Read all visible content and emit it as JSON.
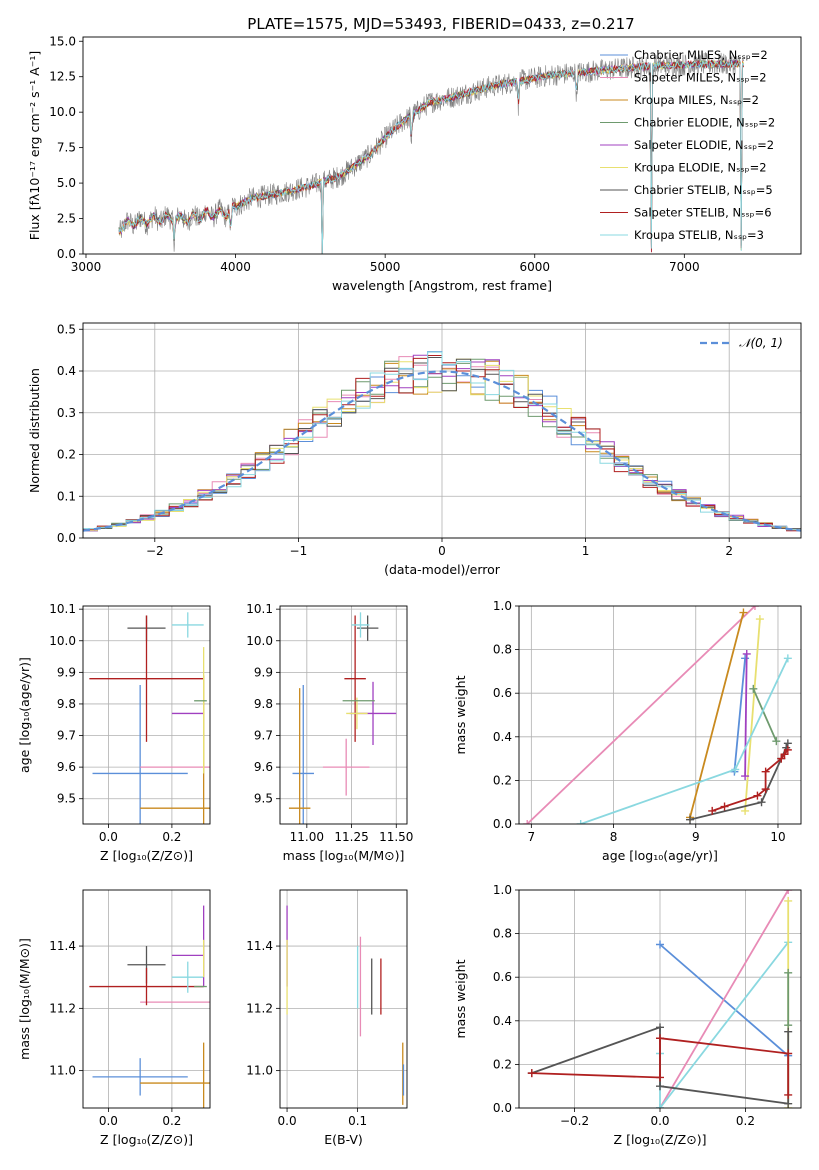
{
  "figure_title": "PLATE=1575, MJD=53493, FIBERID=0433, z=0.217",
  "colors": {
    "chabrier_miles": "#5b8fd9",
    "salpeter_miles": "#e88bb6",
    "kroupa_miles": "#c98a1f",
    "chabrier_elodie": "#6e9a6e",
    "salpeter_elodie": "#a040c0",
    "kroupa_elodie": "#e8e070",
    "chabrier_stelib": "#555555",
    "salpeter_stelib": "#b02020",
    "kroupa_stelib": "#8ad8e0",
    "data": "#808080",
    "gauss": "#5b8fd9",
    "grid": "#b0b0b0"
  },
  "chart_data": [
    {
      "id": "spectrum",
      "type": "line",
      "xlabel": "wavelength [Angstrom, rest frame]",
      "ylabel": "Flux [fλ10⁻¹⁷ erg cm⁻² s⁻¹ A⁻¹]",
      "xlim": [
        2980,
        7780
      ],
      "ylim": [
        0,
        15.3
      ],
      "xticks": [
        3000,
        4000,
        5000,
        6000,
        7000
      ],
      "yticks": [
        0.0,
        2.5,
        5.0,
        7.5,
        10.0,
        12.5,
        15.0
      ],
      "ytick_labels": [
        "0.0",
        "2.5",
        "5.0",
        "7.5",
        "10.0",
        "12.5",
        "15.0"
      ],
      "grid": false,
      "legend_position": "top-right",
      "continuum": [
        [
          3220,
          1.8
        ],
        [
          3300,
          2.2
        ],
        [
          3500,
          2.5
        ],
        [
          3700,
          2.5
        ],
        [
          3800,
          2.8
        ],
        [
          3950,
          2.9
        ],
        [
          4000,
          3.3
        ],
        [
          4100,
          3.9
        ],
        [
          4300,
          4.3
        ],
        [
          4500,
          4.8
        ],
        [
          4700,
          5.5
        ],
        [
          4900,
          7.0
        ],
        [
          5000,
          8.2
        ],
        [
          5100,
          9.2
        ],
        [
          5300,
          10.7
        ],
        [
          5500,
          11.2
        ],
        [
          5700,
          11.8
        ],
        [
          5900,
          12.2
        ],
        [
          6100,
          12.6
        ],
        [
          6300,
          12.8
        ],
        [
          6500,
          13.0
        ],
        [
          6700,
          13.2
        ],
        [
          6900,
          13.3
        ],
        [
          7100,
          13.4
        ],
        [
          7300,
          13.4
        ],
        [
          7400,
          13.4
        ]
      ],
      "features": [
        [
          3590,
          -1.5
        ],
        [
          3968,
          -2.0
        ],
        [
          4580,
          -6.0
        ],
        [
          5175,
          -2.0
        ],
        [
          5890,
          -2.0
        ],
        [
          6280,
          -2.0
        ],
        [
          6780,
          -13.0
        ],
        [
          7380,
          -13.0
        ]
      ],
      "legend": [
        "Chabrier MILES, Nₛₛₚ=2",
        "Salpeter MILES, Nₛₛₚ=2",
        "Kroupa MILES, Nₛₛₚ=2",
        "Chabrier ELODIE, Nₛₛₚ=2",
        "Salpeter ELODIE, Nₛₛₚ=2",
        "Kroupa ELODIE, Nₛₛₚ=2",
        "Chabrier STELIB, Nₛₛₚ=5",
        "Salpeter STELIB, Nₛₛₚ=6",
        "Kroupa STELIB, Nₛₛₚ=3"
      ]
    },
    {
      "id": "residuals",
      "type": "line",
      "xlabel": "(data-model)/error",
      "ylabel": "Normed distribution",
      "xlim": [
        -2.5,
        2.5
      ],
      "ylim": [
        0,
        0.515
      ],
      "xticks": [
        -2,
        -1,
        0,
        1,
        2
      ],
      "xtick_labels": [
        "−2",
        "−1",
        "0",
        "1",
        "2"
      ],
      "yticks": [
        0.0,
        0.1,
        0.2,
        0.3,
        0.4,
        0.5
      ],
      "ytick_labels": [
        "0.0",
        "0.1",
        "0.2",
        "0.3",
        "0.4",
        "0.5"
      ],
      "grid": true,
      "legend_position": "top-right",
      "legend": [
        "𝒩(0, 1)"
      ],
      "bin_width": 0.1
    },
    {
      "id": "age_vs_Z",
      "type": "scatter",
      "xlabel": "Z [log₁₀(Z/Z⊙)]",
      "ylabel": "age  [log₁₀(age/yr)]",
      "xlim": [
        -0.08,
        0.32
      ],
      "ylim": [
        9.42,
        10.11
      ],
      "xticks": [
        0.0,
        0.2
      ],
      "xtick_labels": [
        "0.0",
        "0.2"
      ],
      "yticks": [
        9.5,
        9.6,
        9.7,
        9.8,
        9.9,
        10.0,
        10.1
      ],
      "ytick_labels": [
        "9.5",
        "9.6",
        "9.7",
        "9.8",
        "9.9",
        "10.0",
        "10.1"
      ],
      "grid": true,
      "points": [
        {
          "s": "chabrier_miles",
          "x": 0.1,
          "y": 9.58,
          "xe": 0.15,
          "ye": 0.28
        },
        {
          "s": "kroupa_miles",
          "x": 0.3,
          "y": 9.47,
          "xe": 0.2,
          "ye": 0.42
        },
        {
          "s": "salpeter_miles",
          "x": 0.3,
          "y": 9.6,
          "xe": 0.2,
          "ye": 0.0
        },
        {
          "s": "chabrier_stelib",
          "x": 0.12,
          "y": 10.04,
          "xe": 0.06,
          "ye": 0.04
        },
        {
          "s": "salpeter_stelib",
          "x": 0.12,
          "y": 9.88,
          "xe": 0.18,
          "ye": 0.2
        },
        {
          "s": "kroupa_stelib",
          "x": 0.25,
          "y": 10.05,
          "xe": 0.05,
          "ye": 0.04
        },
        {
          "s": "salpeter_elodie",
          "x": 0.25,
          "y": 9.77,
          "xe": 0.05,
          "ye": 0.0
        },
        {
          "s": "kroupa_elodie",
          "x": 0.3,
          "y": 9.78,
          "xe": 0.0,
          "ye": 0.2
        },
        {
          "s": "chabrier_elodie",
          "x": 0.29,
          "y": 9.81,
          "xe": 0.02,
          "ye": 0.0
        }
      ]
    },
    {
      "id": "age_vs_mass",
      "type": "scatter",
      "xlabel": "mass [log₁₀(M/M⊙)]",
      "ylabel": "",
      "xlim": [
        10.85,
        11.56
      ],
      "ylim": [
        9.42,
        10.11
      ],
      "xticks": [
        11.0,
        11.25,
        11.5
      ],
      "xtick_labels": [
        "11.00",
        "11.25",
        "11.50"
      ],
      "yticks": [
        9.5,
        9.6,
        9.7,
        9.8,
        9.9,
        10.0,
        10.1
      ],
      "ytick_labels": [
        "9.5",
        "9.6",
        "9.7",
        "9.8",
        "9.9",
        "10.0",
        "10.1"
      ],
      "grid": true,
      "points": [
        {
          "s": "chabrier_miles",
          "x": 10.98,
          "y": 9.58,
          "xe": 0.06,
          "ye": 0.28
        },
        {
          "s": "kroupa_miles",
          "x": 10.96,
          "y": 9.47,
          "xe": 0.06,
          "ye": 0.38
        },
        {
          "s": "salpeter_miles",
          "x": 11.22,
          "y": 9.6,
          "xe": 0.13,
          "ye": 0.09
        },
        {
          "s": "chabrier_stelib",
          "x": 11.34,
          "y": 10.04,
          "xe": 0.06,
          "ye": 0.04
        },
        {
          "s": "salpeter_stelib",
          "x": 11.27,
          "y": 9.88,
          "xe": 0.06,
          "ye": 0.2
        },
        {
          "s": "kroupa_stelib",
          "x": 11.3,
          "y": 10.05,
          "xe": 0.05,
          "ye": 0.04
        },
        {
          "s": "salpeter_elodie",
          "x": 11.37,
          "y": 9.77,
          "xe": 0.13,
          "ye": 0.1
        },
        {
          "s": "kroupa_elodie",
          "x": 11.28,
          "y": 9.77,
          "xe": 0.06,
          "ye": 0.05
        },
        {
          "s": "chabrier_elodie",
          "x": 11.29,
          "y": 9.81,
          "xe": 0.09,
          "ye": 0.0
        }
      ]
    },
    {
      "id": "weight_vs_age",
      "type": "line",
      "xlabel": "age  [log₁₀(age/yr)]",
      "ylabel": "mass weight",
      "xlim": [
        6.85,
        10.28
      ],
      "ylim": [
        0,
        1.0
      ],
      "xticks": [
        7,
        8,
        9,
        10
      ],
      "xtick_labels": [
        "7",
        "8",
        "9",
        "10"
      ],
      "yticks": [
        0.0,
        0.2,
        0.4,
        0.6,
        0.8,
        1.0
      ],
      "ytick_labels": [
        "0.0",
        "0.2",
        "0.4",
        "0.6",
        "0.8",
        "1.0"
      ],
      "grid": true,
      "series": [
        {
          "s": "salpeter_miles",
          "pts": [
            [
              6.95,
              0.0
            ],
            [
              9.72,
              1.0
            ]
          ]
        },
        {
          "s": "kroupa_miles",
          "pts": [
            [
              8.93,
              0.03
            ],
            [
              9.58,
              0.97
            ]
          ]
        },
        {
          "s": "chabrier_miles",
          "pts": [
            [
              9.47,
              0.24
            ],
            [
              9.6,
              0.76
            ]
          ]
        },
        {
          "s": "kroupa_elodie",
          "pts": [
            [
              9.6,
              0.06
            ],
            [
              9.78,
              0.94
            ]
          ]
        },
        {
          "s": "chabrier_elodie",
          "pts": [
            [
              9.7,
              0.62
            ],
            [
              9.98,
              0.38
            ]
          ]
        },
        {
          "s": "salpeter_elodie",
          "pts": [
            [
              9.6,
              0.22
            ],
            [
              9.62,
              0.78
            ]
          ]
        },
        {
          "s": "kroupa_stelib",
          "pts": [
            [
              7.6,
              0.0
            ],
            [
              9.48,
              0.25
            ],
            [
              10.12,
              0.76
            ]
          ]
        },
        {
          "s": "chabrier_stelib",
          "pts": [
            [
              8.93,
              0.02
            ],
            [
              9.8,
              0.1
            ],
            [
              10.04,
              0.3
            ],
            [
              10.1,
              0.35
            ],
            [
              10.12,
              0.37
            ]
          ]
        },
        {
          "s": "salpeter_stelib",
          "pts": [
            [
              9.2,
              0.06
            ],
            [
              9.35,
              0.08
            ],
            [
              9.75,
              0.13
            ],
            [
              9.85,
              0.16
            ],
            [
              9.85,
              0.24
            ],
            [
              10.04,
              0.3
            ],
            [
              10.08,
              0.32
            ],
            [
              10.12,
              0.34
            ]
          ]
        }
      ]
    },
    {
      "id": "mass_vs_Z",
      "type": "scatter",
      "xlabel": "Z [log₁₀(Z/Z⊙)]",
      "ylabel": "mass [log₁₀(M/M⊙)]",
      "xlim": [
        -0.08,
        0.32
      ],
      "ylim": [
        10.88,
        11.58
      ],
      "xticks": [
        0.0,
        0.2
      ],
      "xtick_labels": [
        "0.0",
        "0.2"
      ],
      "yticks": [
        11.0,
        11.2,
        11.4
      ],
      "ytick_labels": [
        "11.0",
        "11.2",
        "11.4"
      ],
      "grid": true,
      "points": [
        {
          "s": "chabrier_miles",
          "x": 0.1,
          "y": 10.98,
          "xe": 0.15,
          "ye": 0.06
        },
        {
          "s": "kroupa_miles",
          "x": 0.3,
          "y": 10.96,
          "xe": 0.2,
          "ye": 0.13
        },
        {
          "s": "salpeter_miles",
          "x": 0.3,
          "y": 11.22,
          "xe": 0.2,
          "ye": 0.0
        },
        {
          "s": "chabrier_stelib",
          "x": 0.12,
          "y": 11.34,
          "xe": 0.06,
          "ye": 0.06
        },
        {
          "s": "salpeter_stelib",
          "x": 0.12,
          "y": 11.27,
          "xe": 0.18,
          "ye": 0.06
        },
        {
          "s": "kroupa_stelib",
          "x": 0.25,
          "y": 11.3,
          "xe": 0.05,
          "ye": 0.05
        },
        {
          "s": "salpeter_elodie",
          "x": 0.25,
          "y": 11.37,
          "xe": 0.05,
          "ye": 0.0
        },
        {
          "s": "salpeter_elodie",
          "x": 0.3,
          "y": 11.4,
          "xe": 0.0,
          "ye": 0.13
        },
        {
          "s": "kroupa_elodie",
          "x": 0.3,
          "y": 11.36,
          "xe": 0.0,
          "ye": 0.06
        },
        {
          "s": "chabrier_elodie",
          "x": 0.29,
          "y": 11.27,
          "xe": 0.02,
          "ye": 0.0
        }
      ]
    },
    {
      "id": "mass_vs_EBV",
      "type": "scatter",
      "xlabel": "E(B-V)",
      "ylabel": "",
      "xlim": [
        -0.01,
        0.17
      ],
      "ylim": [
        10.88,
        11.58
      ],
      "xticks": [
        0.0,
        0.1
      ],
      "xtick_labels": [
        "0.0",
        "0.1"
      ],
      "yticks": [
        11.0,
        11.2,
        11.4
      ],
      "ytick_labels": [
        "11.0",
        "11.2",
        "11.4"
      ],
      "grid": true,
      "points": [
        {
          "s": "salpeter_elodie",
          "x": 0.0,
          "y": 11.4,
          "xe": 0,
          "ye": 0.13
        },
        {
          "s": "kroupa_elodie",
          "x": 0.0,
          "y": 11.3,
          "xe": 0,
          "ye": 0.12
        },
        {
          "s": "kroupa_stelib",
          "x": 0.1,
          "y": 11.3,
          "xe": 0,
          "ye": 0.1
        },
        {
          "s": "salpeter_miles",
          "x": 0.104,
          "y": 11.27,
          "xe": 0,
          "ye": 0.16
        },
        {
          "s": "chabrier_stelib",
          "x": 0.12,
          "y": 11.27,
          "xe": 0,
          "ye": 0.09
        },
        {
          "s": "salpeter_stelib",
          "x": 0.133,
          "y": 11.27,
          "xe": 0,
          "ye": 0.09
        },
        {
          "s": "kroupa_miles",
          "x": 0.164,
          "y": 10.99,
          "xe": 0,
          "ye": 0.1
        },
        {
          "s": "chabrier_miles",
          "x": 0.165,
          "y": 10.97,
          "xe": 0,
          "ye": 0.05
        }
      ]
    },
    {
      "id": "weight_vs_Z",
      "type": "line",
      "xlabel": "Z [log₁₀(Z/Z⊙)]",
      "ylabel": "mass weight",
      "xlim": [
        -0.33,
        0.33
      ],
      "ylim": [
        0,
        1.0
      ],
      "xticks": [
        -0.2,
        0.0,
        0.2
      ],
      "xtick_labels": [
        "−0.2",
        "0.0",
        "0.2"
      ],
      "yticks": [
        0.0,
        0.2,
        0.4,
        0.6,
        0.8,
        1.0
      ],
      "ytick_labels": [
        "0.0",
        "0.2",
        "0.4",
        "0.6",
        "0.8",
        "1.0"
      ],
      "grid": true,
      "series": [
        {
          "s": "chabrier_miles",
          "pts": [
            [
              0.0,
              0.75
            ],
            [
              0.3,
              0.24
            ]
          ]
        },
        {
          "s": "salpeter_miles",
          "pts": [
            [
              0.0,
              0.0
            ],
            [
              0.3,
              1.0
            ]
          ]
        },
        {
          "s": "kroupa_stelib",
          "pts": [
            [
              0.0,
              0.0
            ],
            [
              0.3,
              0.76
            ]
          ]
        },
        {
          "s": "kroupa_stelib",
          "pts": [
            [
              0.0,
              0.25
            ],
            [
              0.0,
              0.0
            ]
          ]
        },
        {
          "s": "kroupa_elodie",
          "pts": [
            [
              0.3,
              0.95
            ],
            [
              0.3,
              0.0
            ]
          ]
        },
        {
          "s": "chabrier_elodie",
          "pts": [
            [
              0.3,
              0.62
            ],
            [
              0.3,
              0.38
            ]
          ]
        },
        {
          "s": "chabrier_stelib",
          "pts": [
            [
              -0.3,
              0.16
            ],
            [
              0.0,
              0.37
            ],
            [
              0.0,
              0.1
            ],
            [
              0.3,
              0.02
            ],
            [
              0.3,
              0.35
            ]
          ]
        },
        {
          "s": "salpeter_stelib",
          "pts": [
            [
              -0.3,
              0.16
            ],
            [
              0.0,
              0.14
            ],
            [
              0.0,
              0.32
            ],
            [
              0.3,
              0.25
            ],
            [
              0.3,
              0.06
            ]
          ]
        }
      ]
    }
  ]
}
